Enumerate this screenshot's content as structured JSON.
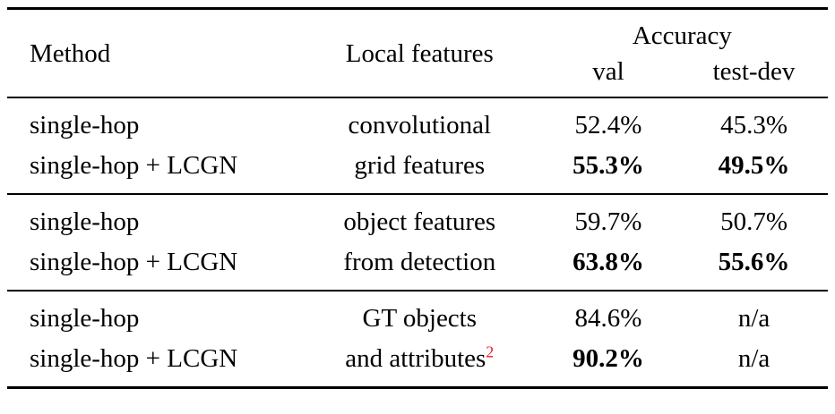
{
  "colors": {
    "text": "#000000",
    "rule": "#000000",
    "footnote_red": "#ed1c24",
    "page_bg": "#ffffff"
  },
  "table": {
    "headers": {
      "method": "Method",
      "local_features": "Local features",
      "accuracy": "Accuracy",
      "val": "val",
      "test_dev": "test-dev"
    },
    "groups": [
      {
        "rows": [
          {
            "method": "single-hop",
            "features": "convolutional",
            "val": "52.4%",
            "test_dev": "45.3%"
          },
          {
            "method": "single-hop + LCGN",
            "features": "grid features",
            "val": "55.3%",
            "test_dev": "49.5%"
          }
        ]
      },
      {
        "rows": [
          {
            "method": "single-hop",
            "features": "object features",
            "val": "59.7%",
            "test_dev": "50.7%"
          },
          {
            "method": "single-hop + LCGN",
            "features": "from detection",
            "val": "63.8%",
            "test_dev": "55.6%"
          }
        ]
      },
      {
        "rows": [
          {
            "method": "single-hop",
            "features": "GT objects",
            "val": "84.6%",
            "test_dev": "n/a"
          },
          {
            "method": "single-hop + LCGN",
            "features": "and attributes",
            "features_footnote": "2",
            "val": "90.2%",
            "test_dev": "n/a"
          }
        ]
      }
    ]
  }
}
